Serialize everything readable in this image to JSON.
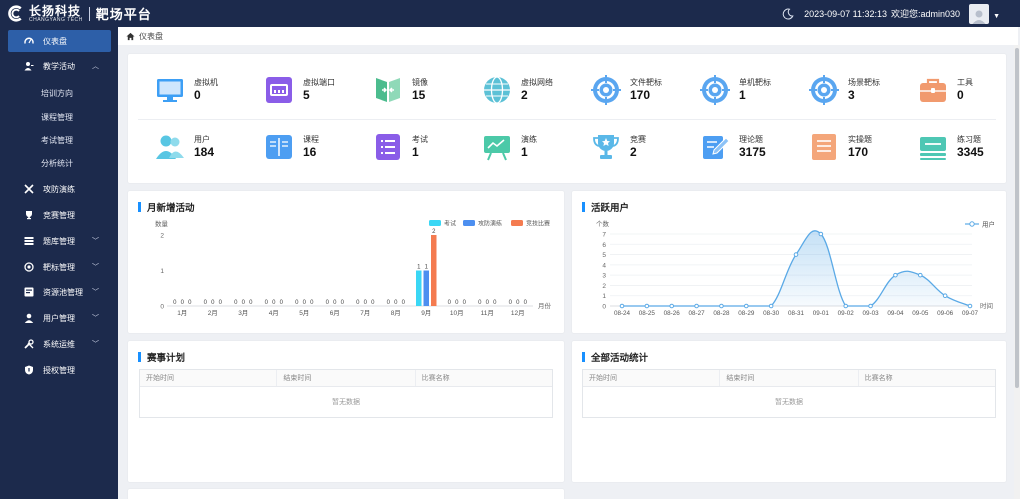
{
  "header": {
    "logo_cn": "长扬科技",
    "logo_en": "CHANGYANG TECH",
    "platform": "靶场平台",
    "datetime": "2023-09-07 11:32:13",
    "welcome": "欢迎您:",
    "username": "admin030"
  },
  "breadcrumb": {
    "current": "仪表盘"
  },
  "sidebar": {
    "items": [
      {
        "label": "仪表盘",
        "icon": "dashboard-icon",
        "active": true
      },
      {
        "label": "教学活动",
        "icon": "teaching-icon",
        "expanded": true
      },
      {
        "label": "攻防演练",
        "icon": "attack-defense-icon"
      },
      {
        "label": "竞赛管理",
        "icon": "trophy-icon"
      },
      {
        "label": "题库管理",
        "icon": "question-bank-icon"
      },
      {
        "label": "靶标管理",
        "icon": "target-icon"
      },
      {
        "label": "资源池管理",
        "icon": "resource-pool-icon"
      },
      {
        "label": "用户管理",
        "icon": "user-icon"
      },
      {
        "label": "系统运维",
        "icon": "tools-icon"
      },
      {
        "label": "授权管理",
        "icon": "shield-icon"
      }
    ],
    "sub_items": [
      "培训方向",
      "课程管理",
      "考试管理",
      "分析统计"
    ]
  },
  "stats": [
    {
      "label": "虚拟机",
      "value": "0",
      "icon": "monitor-icon",
      "color": "#3d9ff5"
    },
    {
      "label": "虚拟端口",
      "value": "5",
      "icon": "router-icon",
      "color": "#8a5de8"
    },
    {
      "label": "镜像",
      "value": "15",
      "icon": "mirror-icon",
      "color": "#4cbc8e"
    },
    {
      "label": "虚拟网络",
      "value": "2",
      "icon": "globe-icon",
      "color": "#5cc1d6"
    },
    {
      "label": "文件靶标",
      "value": "170",
      "icon": "target-icon",
      "color": "#5aa6f0"
    },
    {
      "label": "单机靶标",
      "value": "1",
      "icon": "target-icon",
      "color": "#5aa6f0"
    },
    {
      "label": "场景靶标",
      "value": "3",
      "icon": "target-icon",
      "color": "#5aa6f0"
    },
    {
      "label": "工具",
      "value": "0",
      "icon": "toolbox-icon",
      "color": "#f19a6e"
    },
    {
      "label": "用户",
      "value": "184",
      "icon": "users-icon",
      "color": "#58c6e3"
    },
    {
      "label": "课程",
      "value": "16",
      "icon": "book-icon",
      "color": "#4d9ef2"
    },
    {
      "label": "考试",
      "value": "1",
      "icon": "list-icon",
      "color": "#8a5de8"
    },
    {
      "label": "演练",
      "value": "1",
      "icon": "board-icon",
      "color": "#4cc9a8"
    },
    {
      "label": "竞赛",
      "value": "2",
      "icon": "cup-icon",
      "color": "#5ab8e8"
    },
    {
      "label": "理论题",
      "value": "3175",
      "icon": "edit-icon",
      "color": "#4d9ef2"
    },
    {
      "label": "实操题",
      "value": "170",
      "icon": "document-icon",
      "color": "#f4a67a"
    },
    {
      "label": "练习题",
      "value": "3345",
      "icon": "keyboard-icon",
      "color": "#4ec7b4"
    }
  ],
  "monthly_panel": {
    "title": "月新增活动"
  },
  "active_panel": {
    "title": "活跃用户"
  },
  "schedule_panel": {
    "title": "赛事计划",
    "columns": [
      "开始时间",
      "结束时间",
      "比赛名称"
    ],
    "empty_text": "暂无数据"
  },
  "activity_stats_panel": {
    "title": "全部活动统计",
    "columns": [
      "开始时间",
      "结束时间",
      "比赛名称"
    ],
    "empty_text": "暂无数据"
  },
  "colors": {
    "sidebar": "#1c2a4c",
    "accent": "#2d5fa8",
    "exam": "#3ad7f5",
    "drill": "#4d8ff0",
    "contest": "#f47b50",
    "line": "#5aa9e6"
  },
  "chart_data": [
    {
      "type": "bar",
      "ylabel": "数量",
      "xlabel": "月份",
      "categories": [
        "1月",
        "2月",
        "3月",
        "4月",
        "5月",
        "6月",
        "7月",
        "8月",
        "9月",
        "10月",
        "11月",
        "12月"
      ],
      "ylim": [
        0,
        2
      ],
      "yticks": [
        0,
        1,
        2
      ],
      "legend_position": "top-right",
      "series": [
        {
          "name": "考试",
          "values": [
            0,
            0,
            0,
            0,
            0,
            0,
            0,
            0,
            1,
            0,
            0,
            0
          ]
        },
        {
          "name": "攻防演练",
          "values": [
            0,
            0,
            0,
            0,
            0,
            0,
            0,
            0,
            1,
            0,
            0,
            0
          ]
        },
        {
          "name": "竞技比赛",
          "values": [
            0,
            0,
            0,
            0,
            0,
            0,
            0,
            0,
            2,
            0,
            0,
            0
          ]
        }
      ]
    },
    {
      "type": "line",
      "ylabel": "个数",
      "xlabel": "时间",
      "categories": [
        "08-24",
        "08-25",
        "08-26",
        "08-27",
        "08-28",
        "08-29",
        "08-30",
        "08-31",
        "09-01",
        "09-02",
        "09-03",
        "09-04",
        "09-05",
        "09-06",
        "09-07"
      ],
      "ylim": [
        0,
        7
      ],
      "yticks": [
        0,
        1,
        2,
        3,
        4,
        5,
        6,
        7
      ],
      "legend_position": "top-right",
      "series": [
        {
          "name": "用户",
          "values": [
            0,
            0,
            0,
            0,
            0,
            0,
            0,
            5,
            7,
            0,
            0,
            3,
            3,
            1,
            0
          ]
        }
      ]
    }
  ]
}
